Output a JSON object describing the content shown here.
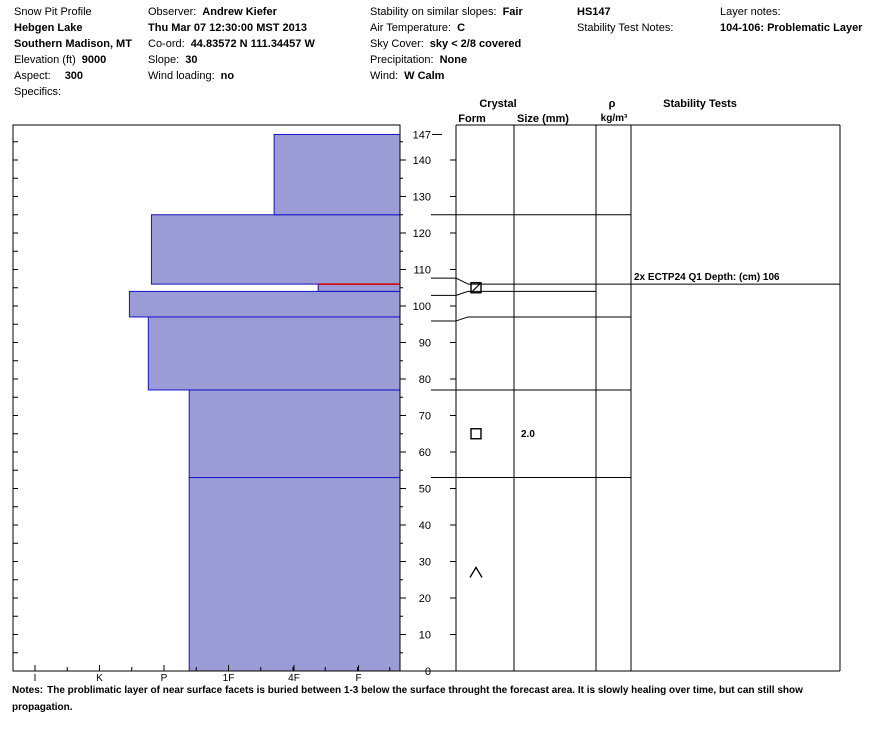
{
  "header": {
    "title": "Snow Pit Profile",
    "location": "Hebgen Lake",
    "region": "Southern Madison, MT",
    "elevation_label": "Elevation (ft)",
    "elevation": "9000",
    "aspect_label": "Aspect:",
    "aspect": "300",
    "specifics_label": "Specifics:",
    "observer_label": "Observer:",
    "observer": "Andrew Kiefer",
    "datetime": "Thu Mar 07 12:30:00 MST 2013",
    "coord_label": "Co-ord:",
    "coord": "44.83572 N 111.34457 W",
    "slope_label": "Slope:",
    "slope": "30",
    "wind_loading_label": "Wind loading:",
    "wind_loading": "no",
    "stability_label": "Stability on similar slopes:",
    "stability": "Fair",
    "air_temp_label": "Air Temperature:",
    "air_temp": "C",
    "sky_label": "Sky Cover:",
    "sky": "sky < 2/8 covered",
    "precip_label": "Precipitation:",
    "precip": "None",
    "wind_label": "Wind:",
    "wind": "W Calm",
    "hs": "HS147",
    "stability_notes_label": "Stability Test Notes:",
    "layer_notes_label": "Layer notes:",
    "layer_notes": "104-106: Problematic Layer"
  },
  "columns": {
    "crystal": "Crystal",
    "form": "Form",
    "size": "Size (mm)",
    "rho": "ρ",
    "rho_unit": "kg/m³",
    "stability_tests": "Stability Tests"
  },
  "chart_data": {
    "type": "bar",
    "description_axis": "hardness vs depth",
    "y_range": [
      0,
      150
    ],
    "y_ticks": [
      0,
      10,
      20,
      30,
      40,
      50,
      60,
      70,
      80,
      90,
      100,
      110,
      120,
      130,
      140
    ],
    "hs_tick": "147",
    "hardness_labels": [
      "I",
      "K",
      "P",
      "1F",
      "4F",
      "F"
    ],
    "hardness_scale_max": 6,
    "layers": [
      {
        "bottom": 0,
        "top": 53,
        "hardness": 3.35
      },
      {
        "bottom": 53,
        "top": 77,
        "hardness": 3.35
      },
      {
        "bottom": 77,
        "top": 97,
        "hardness": 4.0
      },
      {
        "bottom": 97,
        "top": 104,
        "hardness": 4.3
      },
      {
        "bottom": 104,
        "top": 106,
        "hardness": 1.3
      },
      {
        "bottom": 106,
        "top": 125,
        "hardness": 3.95
      },
      {
        "bottom": 125,
        "top": 147,
        "hardness": 2.0
      }
    ],
    "crystals": [
      {
        "depth": 105,
        "form": "faceted-rounded",
        "size": ""
      },
      {
        "depth": 65,
        "form": "faceted",
        "size": "2.0"
      },
      {
        "depth": 27,
        "form": "depth-hoar",
        "size": ""
      }
    ],
    "stability_tests": [
      {
        "depth": 106,
        "text": "2x ECTP24 Q1 Depth: (cm) 106"
      }
    ]
  },
  "notes": {
    "label": "Notes:",
    "text": "The problimatic layer of near surface facets is buried between 1-3 below the surface throught the forecast area.  It is slowly healing over time, but can still show propagation."
  }
}
